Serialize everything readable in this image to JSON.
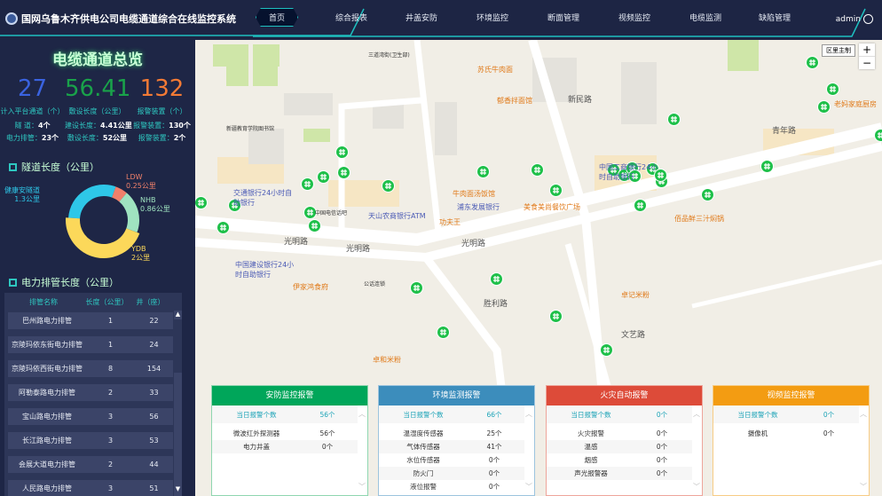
{
  "header": {
    "title": "国网乌鲁木齐供电公司电缆通道综合在线监控系统",
    "nav": [
      "首页",
      "综合报表",
      "井盖安防",
      "环境监控",
      "断面管理",
      "视频监控",
      "电缆监测",
      "缺陷管理"
    ],
    "active": "首页",
    "user": "admin"
  },
  "overview": {
    "title": "电缆通道总览",
    "stats": [
      {
        "value": "27",
        "label": "计入平台通道（个）",
        "color": "#3a63e0",
        "rows": [
          {
            "k": "隧 道：",
            "v": "4个"
          },
          {
            "k": "电力排管：",
            "v": "23个"
          }
        ]
      },
      {
        "value": "56.41",
        "label": "敷设长度（公里）",
        "color": "#19a24a",
        "rows": [
          {
            "k": "建设长度：",
            "v": "4.41公里"
          },
          {
            "k": "敷设长度：",
            "v": "52公里"
          }
        ]
      },
      {
        "value": "132",
        "label": "报警装置（个）",
        "color": "#f27a35",
        "rows": [
          {
            "k": "报警装置：",
            "v": "130个"
          },
          {
            "k": "报警装置：",
            "v": "2个"
          }
        ]
      }
    ]
  },
  "tunnel": {
    "title": "隧道长度（公里）"
  },
  "chart_data": {
    "type": "pie",
    "donut": true,
    "unit": "公里",
    "slices": [
      {
        "name": "健康安隧道",
        "value": 1.3,
        "label": "1.3公里",
        "color": "#2ec7e8"
      },
      {
        "name": "LDW",
        "value": 0.25,
        "label": "0.25公里",
        "color": "#f0806a"
      },
      {
        "name": "NHB",
        "value": 0.86,
        "label": "0.86公里",
        "color": "#9fe3c0"
      },
      {
        "name": "YDB",
        "value": 2,
        "label": "2公里",
        "color": "#fcd85a"
      }
    ]
  },
  "pipe": {
    "title": "电力排管长度（公里）",
    "headers": [
      "排管名称",
      "长度（公里）",
      "井（座）"
    ],
    "rows": [
      [
        "巴州路电力排管",
        "1",
        "22"
      ],
      [
        "京陵玛依东街电力排管",
        "1",
        "24"
      ],
      [
        "京陵玛依西街电力排管",
        "8",
        "154"
      ],
      [
        "阿勒泰路电力排管",
        "2",
        "33"
      ],
      [
        "宝山路电力排管",
        "3",
        "56"
      ],
      [
        "长江路电力排管",
        "3",
        "53"
      ],
      [
        "会展大道电力排管",
        "2",
        "44"
      ],
      [
        "人民路电力排管",
        "3",
        "51"
      ]
    ]
  },
  "map": {
    "type_button": "区里主制",
    "labels": [
      {
        "t": "三道湾街(卫生部)",
        "c": ""
      },
      {
        "t": "苏氏牛肉面",
        "c": "o"
      },
      {
        "t": "郁香拌面馆",
        "c": "o"
      },
      {
        "t": "新疆教育学院图书馆",
        "c": ""
      },
      {
        "t": "交通银行24小时自助银行",
        "c": "b"
      },
      {
        "t": "中国电信话吧",
        "c": ""
      },
      {
        "t": "天山农商银行ATM",
        "c": "b"
      },
      {
        "t": "牛肉面汤饭馆",
        "c": "o"
      },
      {
        "t": "浦东发展银行",
        "c": "b"
      },
      {
        "t": "美食美尚餐饮广场",
        "c": "o"
      },
      {
        "t": "功夫王",
        "c": "o"
      },
      {
        "t": "中国工商银行24小时自助银行",
        "c": "b"
      },
      {
        "t": "老妈家庭厨房",
        "c": "o"
      },
      {
        "t": "佰品鲜三汁焖锅",
        "c": "o"
      },
      {
        "t": "中国建设银行24小时自助银行",
        "c": "b"
      },
      {
        "t": "伊家鸿食府",
        "c": "o"
      },
      {
        "t": "公话连锁",
        "c": ""
      },
      {
        "t": "卓记米粉",
        "c": "o"
      },
      {
        "t": "卓和米粉",
        "c": "o"
      },
      {
        "t": "光明路",
        "c": "r"
      },
      {
        "t": "光明路",
        "c": "r"
      },
      {
        "t": "光明路",
        "c": "r"
      },
      {
        "t": "青年路",
        "c": "r"
      },
      {
        "t": "新民路",
        "c": "r"
      },
      {
        "t": "文艺路",
        "c": "r"
      },
      {
        "t": "胜利路",
        "c": "r"
      }
    ]
  },
  "alarms": [
    {
      "title": "安防监控报警",
      "color": "#00a65a",
      "border": "#8fd6b0",
      "total_label": "当日报警个数",
      "total": "56个",
      "rows": [
        [
          "微波红外探测器",
          "56个"
        ],
        [
          "电力井盖",
          "0个"
        ]
      ]
    },
    {
      "title": "环境监测报警",
      "color": "#3c8dbc",
      "border": "#9cc4de",
      "total_label": "当日报警个数",
      "total": "66个",
      "rows": [
        [
          "温湿度传感器",
          "25个"
        ],
        [
          "气体传感器",
          "41个"
        ],
        [
          "水位传感器",
          "0个"
        ],
        [
          "防火门",
          "0个"
        ],
        [
          "液位报警",
          "0个"
        ]
      ]
    },
    {
      "title": "火灾自动报警",
      "color": "#dd4b39",
      "border": "#eea59b",
      "total_label": "当日报警个数",
      "total": "0个",
      "rows": [
        [
          "火灾报警",
          "0个"
        ],
        [
          "温感",
          "0个"
        ],
        [
          "烟感",
          "0个"
        ],
        [
          "声光报警器",
          "0个"
        ]
      ]
    },
    {
      "title": "视频监控报警",
      "color": "#f39c12",
      "border": "#f7cc85",
      "total_label": "当日报警个数",
      "total": "0个",
      "rows": [
        [
          "摄像机",
          "0个"
        ]
      ]
    }
  ]
}
